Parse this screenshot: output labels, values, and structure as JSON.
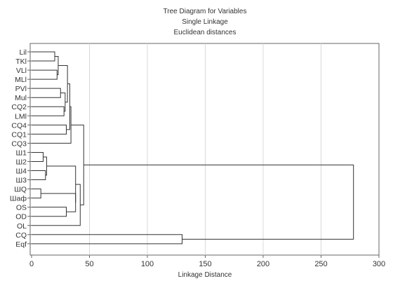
{
  "chart_data": {
    "type": "dendrogram",
    "title": "Tree Diagram for Variables",
    "subtitle": [
      "Single Linkage",
      "Euclidean distances"
    ],
    "xlabel": "Linkage Distance",
    "xlim": [
      0,
      300
    ],
    "xticks": [
      0,
      50,
      100,
      150,
      200,
      250,
      300
    ],
    "grid": true,
    "leaves": [
      "Lil",
      "TKl",
      "VLl",
      "MLl",
      "PVl",
      "Mul",
      "CQ2",
      "LMl",
      "CQ4",
      "CQ1",
      "CQ3",
      "Ш1",
      "Ш2",
      "Ш4",
      "Ш3",
      "ШQ",
      "Шаф",
      "OS",
      "OD",
      "OL",
      "CQ",
      "Eqf"
    ],
    "merges": [
      {
        "a": "Ш1",
        "b": "Ш2",
        "height": 10
      },
      {
        "a": "Ш4",
        "b": "Ш3",
        "height": 12
      },
      {
        "a": "ШQ",
        "b": "Шаф",
        "height": 8
      },
      {
        "a": "Lil",
        "b": "TKl",
        "height": 20
      },
      {
        "a": "VLl",
        "b": "MLl",
        "height": 22
      },
      {
        "a": "OS",
        "b": "OD",
        "height": 30
      },
      {
        "a": "PVl",
        "b": "Mul",
        "height": 25
      },
      {
        "a": "CQ2",
        "b": "LMl",
        "height": 28
      },
      {
        "a": "CQ4",
        "b": "CQ1",
        "height": 30
      },
      {
        "a": "Ш1",
        "b": "Ш4",
        "height": 13
      },
      {
        "a": "ШQ",
        "b": "OS",
        "height": 38
      },
      {
        "a": "Lil",
        "b": "VLl",
        "height": 23
      },
      {
        "a": "PVl",
        "b": "CQ2",
        "height": 29
      },
      {
        "a": "Lil",
        "b": "PVl",
        "height": 31
      },
      {
        "a": "Lil",
        "b": "CQ4",
        "height": 33
      },
      {
        "a": "Lil",
        "b": "CQ3",
        "height": 34
      },
      {
        "a": "Ш1",
        "b": "ШQ",
        "height": 38
      },
      {
        "a": "Ш1",
        "b": "OL",
        "height": 42
      },
      {
        "a": "Lil",
        "b": "Ш1",
        "height": 45
      },
      {
        "a": "CQ",
        "b": "Eqf",
        "height": 130
      },
      {
        "a": "Lil",
        "b": "CQ",
        "height": 278
      }
    ]
  }
}
